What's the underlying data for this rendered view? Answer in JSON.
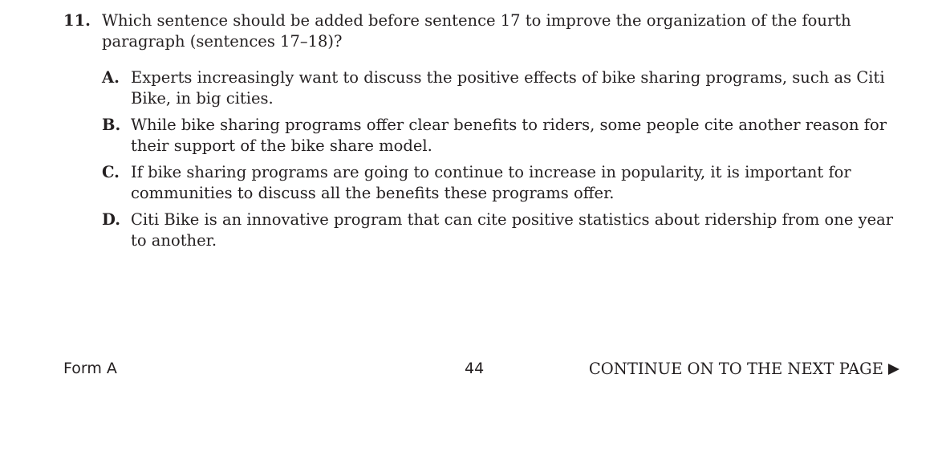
{
  "question": {
    "number": "11.",
    "text": "Which sentence should be added before sentence 17 to improve the organization of the fourth paragraph (sentences 17–18)?"
  },
  "options": [
    {
      "letter": "A.",
      "text": "Experts increasingly want to discuss the positive effects of bike sharing programs, such as Citi Bike, in big cities."
    },
    {
      "letter": "B.",
      "text": "While bike sharing programs offer clear benefits to riders, some people cite another reason for their support of the bike share model."
    },
    {
      "letter": "C.",
      "text": "If bike sharing programs are going to continue to increase in popularity, it is important for communities to discuss all the benefits these programs offer."
    },
    {
      "letter": "D.",
      "text": "Citi Bike is an innovative program that can cite positive statistics about ridership from one year to another."
    }
  ],
  "footer": {
    "form_label": "Form A",
    "page_number": "44",
    "continue_text": "CONTINUE ON TO THE NEXT PAGE",
    "continue_icon": "right-triangle-arrow-icon"
  }
}
